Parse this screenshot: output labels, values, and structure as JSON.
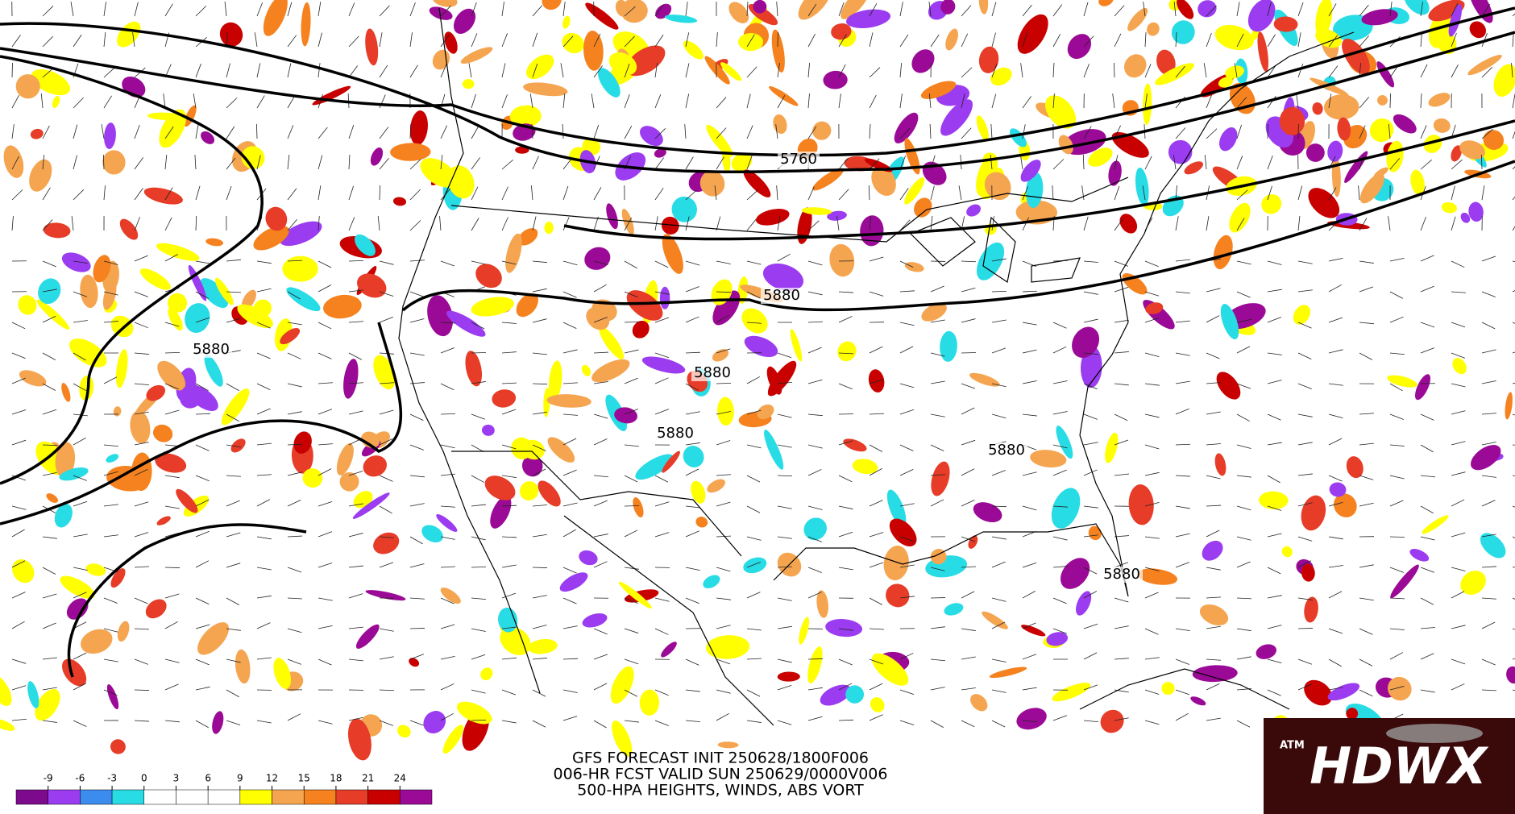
{
  "map": {
    "contour_labels": [
      "5760",
      "5880",
      "5880",
      "5880",
      "5880",
      "5880",
      "5880"
    ]
  },
  "caption": {
    "lines": [
      "GFS FORECAST INIT 250628/1800F006",
      "006-HR FCST VALID SUN 250629/0000V006",
      "500-HPA HEIGHTS, WINDS, ABS VORT"
    ]
  },
  "colorbar": {
    "ticks": [
      -9,
      -6,
      -3,
      0,
      3,
      6,
      9,
      12,
      15,
      18,
      21,
      24
    ],
    "colors": [
      "#7d0a8c",
      "#9b3cf0",
      "#3c8cf0",
      "#28dce6",
      "#ffffff",
      "#ffffff",
      "#ffffff",
      "#ffff00",
      "#f5a550",
      "#f5821e",
      "#e63c28",
      "#c80000",
      "#9b0a96"
    ]
  },
  "logo": {
    "text": "HDWX",
    "emblem": "ATM"
  }
}
